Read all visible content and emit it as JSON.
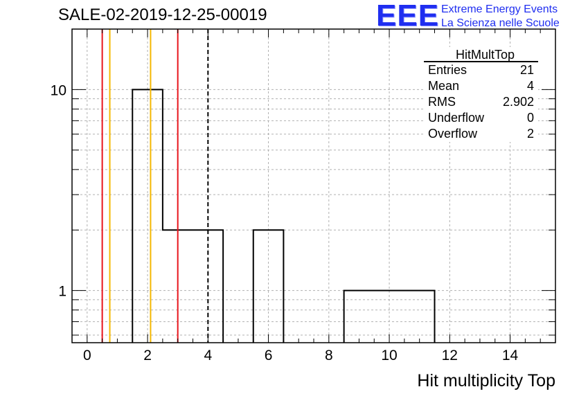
{
  "title": "SALE-02-2019-12-25-00019",
  "logo": {
    "text": "EEE",
    "line1": "Extreme Energy Events",
    "line2": "La Scienza nelle Scuole",
    "color": "#1f2ef0"
  },
  "stats": {
    "name": "HitMultTop",
    "rows": [
      {
        "label": "Entries",
        "value": "21"
      },
      {
        "label": "Mean",
        "value": "4"
      },
      {
        "label": "RMS",
        "value": "2.902"
      },
      {
        "label": "Underflow",
        "value": "0"
      },
      {
        "label": "Overflow",
        "value": "2"
      }
    ]
  },
  "chart_data": {
    "type": "histogram",
    "title": "SALE-02-2019-12-25-00019",
    "xlabel": "Hit multiplicity Top",
    "ylabel": "",
    "yscale": "log",
    "xlim": [
      -0.5,
      15.5
    ],
    "ylim": [
      0.55,
      20
    ],
    "x_ticks": [
      0,
      2,
      4,
      6,
      8,
      10,
      12,
      14
    ],
    "y_tick_labels": [
      1,
      10
    ],
    "grid": true,
    "bins": [
      {
        "lo": 1.5,
        "hi": 2.5,
        "count": 10
      },
      {
        "lo": 2.5,
        "hi": 3.5,
        "count": 2
      },
      {
        "lo": 3.5,
        "hi": 4.5,
        "count": 2
      },
      {
        "lo": 5.5,
        "hi": 6.5,
        "count": 2
      },
      {
        "lo": 8.5,
        "hi": 9.5,
        "count": 1
      },
      {
        "lo": 9.5,
        "hi": 10.5,
        "count": 1
      },
      {
        "lo": 10.5,
        "hi": 11.5,
        "count": 1
      }
    ],
    "vertical_lines": [
      {
        "x": 0.5,
        "color": "#e8141b",
        "style": "solid"
      },
      {
        "x": 0.75,
        "color": "#f5b800",
        "style": "solid"
      },
      {
        "x": 2.1,
        "color": "#f5b800",
        "style": "solid"
      },
      {
        "x": 3.0,
        "color": "#e8141b",
        "style": "solid"
      },
      {
        "x": 4.0,
        "color": "#000000",
        "style": "dashed"
      }
    ]
  }
}
